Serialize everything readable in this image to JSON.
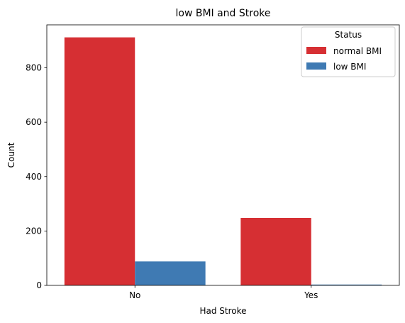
{
  "chart_data": {
    "type": "bar",
    "title": "low BMI and Stroke",
    "xlabel": "Had Stroke",
    "ylabel": "Count",
    "categories": [
      "No",
      "Yes"
    ],
    "series": [
      {
        "name": "normal BMI",
        "color": "#d62f33",
        "values": [
          912,
          248
        ]
      },
      {
        "name": "low BMI",
        "color": "#3f7ab3",
        "values": [
          88,
          3
        ]
      }
    ],
    "ylim": [
      0,
      958
    ],
    "yticks": [
      0,
      200,
      400,
      600,
      800
    ],
    "legend": {
      "title": "Status",
      "position": "top-right"
    },
    "grid": false
  }
}
